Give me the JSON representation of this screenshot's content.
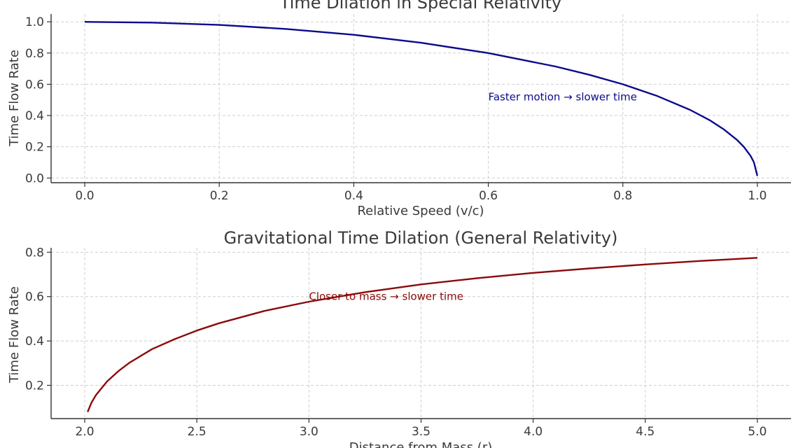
{
  "chart_data": [
    {
      "type": "line",
      "title": "Time Dilation in Special Relativity",
      "xlabel": "Relative Speed (v/c)",
      "ylabel": "Time Flow Rate",
      "xlim": [
        -0.05,
        1.05
      ],
      "ylim": [
        -0.03,
        1.05
      ],
      "xticks": [
        "0.0",
        "0.2",
        "0.4",
        "0.6",
        "0.8",
        "1.0"
      ],
      "yticks": [
        "0.0",
        "0.2",
        "0.4",
        "0.6",
        "0.8",
        "1.0"
      ],
      "grid": true,
      "color": "#0b0b8c",
      "series": [
        {
          "x": [
            0.0,
            0.1,
            0.2,
            0.3,
            0.4,
            0.5,
            0.6,
            0.7,
            0.75,
            0.8,
            0.85,
            0.9,
            0.93,
            0.95,
            0.97,
            0.98,
            0.99,
            0.995,
            0.9999
          ],
          "values": [
            1.0,
            0.995,
            0.98,
            0.954,
            0.917,
            0.866,
            0.8,
            0.714,
            0.661,
            0.6,
            0.527,
            0.436,
            0.368,
            0.312,
            0.243,
            0.199,
            0.141,
            0.1,
            0.014
          ]
        }
      ],
      "annotations": [
        {
          "text": "Faster motion → slower time",
          "x": 0.6,
          "y": 0.52
        }
      ]
    },
    {
      "type": "line",
      "title": "Gravitational Time Dilation (General Relativity)",
      "xlabel": "Distance from Mass (r)",
      "ylabel": "Time Flow Rate",
      "xlim": [
        1.85,
        5.15
      ],
      "ylim": [
        0.05,
        0.82
      ],
      "xticks": [
        "2.0",
        "2.5",
        "3.0",
        "3.5",
        "4.0",
        "4.5",
        "5.0"
      ],
      "yticks": [
        "0.2",
        "0.4",
        "0.6",
        "0.8"
      ],
      "grid": true,
      "color": "#8b0a0a",
      "series": [
        {
          "x": [
            2.013,
            2.03,
            2.05,
            2.1,
            2.15,
            2.2,
            2.3,
            2.4,
            2.5,
            2.6,
            2.8,
            3.0,
            3.25,
            3.5,
            3.75,
            4.0,
            4.25,
            4.5,
            4.75,
            5.0
          ],
          "values": [
            0.08,
            0.122,
            0.156,
            0.218,
            0.264,
            0.302,
            0.363,
            0.408,
            0.447,
            0.48,
            0.535,
            0.577,
            0.62,
            0.655,
            0.683,
            0.707,
            0.727,
            0.745,
            0.761,
            0.775
          ]
        }
      ],
      "annotations": [
        {
          "text": "Closer to mass → slower time",
          "x": 3.0,
          "y": 0.6
        }
      ]
    }
  ]
}
